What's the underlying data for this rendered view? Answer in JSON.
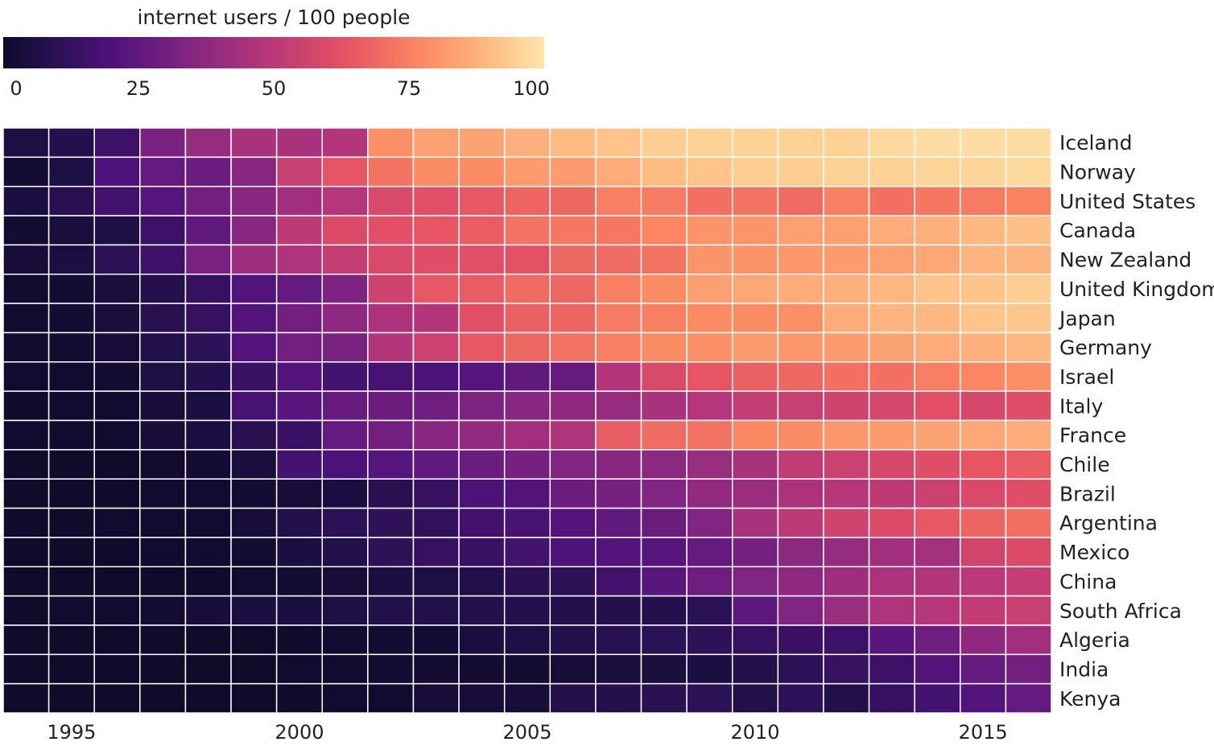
{
  "chart_data": {
    "type": "heatmap",
    "title": "",
    "legend": {
      "title": "internet users / 100 people",
      "range": [
        0,
        100
      ],
      "ticks": [
        "0",
        "25",
        "50",
        "75",
        "100"
      ],
      "colormap": "magma"
    },
    "x": [
      1994,
      1995,
      1996,
      1997,
      1998,
      1999,
      2000,
      2001,
      2002,
      2003,
      2004,
      2005,
      2006,
      2007,
      2008,
      2009,
      2010,
      2011,
      2012,
      2013,
      2014,
      2015,
      2016
    ],
    "x_ticks": [
      "1995",
      "2000",
      "2005",
      "2010",
      "2015"
    ],
    "x_tick_values": [
      1995,
      2000,
      2005,
      2010,
      2015
    ],
    "rows": [
      {
        "name": "Iceland",
        "values": [
          6,
          8,
          15,
          32,
          40,
          45,
          45,
          48,
          79,
          83,
          84,
          87,
          90,
          92,
          94,
          95,
          95,
          95,
          95,
          97,
          98,
          98,
          98
        ]
      },
      {
        "name": "Norway",
        "values": [
          2,
          6,
          20,
          26,
          28,
          36,
          54,
          64,
          72,
          78,
          78,
          82,
          82,
          86,
          90,
          92,
          94,
          94,
          95,
          95,
          96,
          96,
          97
        ]
      },
      {
        "name": "United States",
        "values": [
          5,
          9,
          16,
          22,
          30,
          36,
          43,
          49,
          59,
          62,
          65,
          68,
          69,
          75,
          74,
          71,
          72,
          70,
          75,
          71,
          73,
          74,
          76
        ]
      },
      {
        "name": "Canada",
        "values": [
          2,
          4,
          6,
          15,
          25,
          36,
          51,
          60,
          62,
          64,
          66,
          72,
          73,
          73,
          77,
          80,
          80,
          83,
          83,
          86,
          87,
          89,
          91
        ]
      },
      {
        "name": "New Zealand",
        "values": [
          3,
          5,
          10,
          15,
          32,
          42,
          47,
          53,
          59,
          61,
          62,
          63,
          69,
          70,
          72,
          80,
          80,
          81,
          82,
          83,
          85,
          88,
          88
        ]
      },
      {
        "name": "United Kingdom",
        "values": [
          1,
          2,
          4,
          8,
          13,
          21,
          26,
          33,
          56,
          65,
          66,
          70,
          69,
          75,
          78,
          83,
          85,
          86,
          87,
          89,
          92,
          92,
          94
        ]
      },
      {
        "name": "Japan",
        "values": [
          1,
          2,
          4,
          9,
          13,
          21,
          30,
          38,
          46,
          48,
          62,
          67,
          68,
          74,
          75,
          78,
          78,
          79,
          86,
          88,
          89,
          92,
          93
        ]
      },
      {
        "name": "Germany",
        "values": [
          1,
          2,
          3,
          7,
          10,
          21,
          30,
          32,
          48,
          55,
          65,
          69,
          72,
          75,
          78,
          79,
          82,
          81,
          82,
          84,
          86,
          87,
          89
        ]
      },
      {
        "name": "Israel",
        "values": [
          1,
          1,
          2,
          6,
          8,
          14,
          21,
          17,
          18,
          19,
          22,
          25,
          26,
          48,
          59,
          64,
          67,
          69,
          71,
          71,
          75,
          77,
          79
        ]
      },
      {
        "name": "Italy",
        "values": [
          0,
          1,
          1,
          3,
          5,
          18,
          23,
          27,
          28,
          29,
          33,
          36,
          38,
          40,
          45,
          49,
          53,
          54,
          56,
          58,
          62,
          58,
          61
        ]
      },
      {
        "name": "France",
        "values": [
          1,
          1,
          1,
          3,
          5,
          9,
          14,
          26,
          30,
          36,
          39,
          43,
          47,
          66,
          70,
          72,
          77,
          78,
          81,
          82,
          84,
          85,
          86
        ]
      },
      {
        "name": "Chile",
        "values": [
          0,
          0,
          0,
          1,
          2,
          4,
          17,
          19,
          22,
          25,
          28,
          31,
          34,
          36,
          37,
          41,
          45,
          52,
          55,
          58,
          61,
          64,
          66
        ]
      },
      {
        "name": "Brazil",
        "values": [
          0,
          0,
          0,
          1,
          1,
          2,
          3,
          5,
          9,
          13,
          19,
          21,
          28,
          31,
          34,
          39,
          41,
          46,
          49,
          51,
          55,
          59,
          61
        ]
      },
      {
        "name": "Argentina",
        "values": [
          0,
          0,
          1,
          1,
          1,
          3,
          7,
          10,
          11,
          12,
          16,
          18,
          21,
          25,
          28,
          34,
          45,
          51,
          56,
          60,
          65,
          68,
          71
        ]
      },
      {
        "name": "Mexico",
        "values": [
          0,
          0,
          0,
          1,
          1,
          2,
          5,
          7,
          11,
          13,
          14,
          17,
          20,
          21,
          22,
          26,
          31,
          37,
          40,
          43,
          44,
          57,
          60
        ]
      },
      {
        "name": "China",
        "values": [
          0,
          0,
          0,
          0,
          0,
          1,
          2,
          3,
          5,
          6,
          7,
          9,
          11,
          16,
          23,
          29,
          34,
          38,
          42,
          46,
          48,
          50,
          53
        ]
      },
      {
        "name": "South Africa",
        "values": [
          0,
          1,
          1,
          2,
          3,
          5,
          5,
          6,
          7,
          7,
          8,
          8,
          8,
          8,
          8,
          10,
          24,
          34,
          41,
          47,
          49,
          52,
          54
        ]
      },
      {
        "name": "Algeria",
        "values": [
          0,
          0,
          0,
          0,
          0,
          0,
          0,
          1,
          2,
          2,
          5,
          6,
          7,
          9,
          10,
          11,
          13,
          14,
          15,
          23,
          29,
          38,
          43
        ]
      },
      {
        "name": "India",
        "values": [
          0,
          0,
          0,
          0,
          0,
          0,
          1,
          1,
          2,
          2,
          2,
          2,
          3,
          4,
          4,
          5,
          8,
          10,
          13,
          15,
          21,
          26,
          30
        ]
      },
      {
        "name": "Kenya",
        "values": [
          0,
          0,
          0,
          0,
          0,
          0,
          0,
          1,
          1,
          3,
          3,
          3,
          8,
          8,
          9,
          10,
          7,
          10,
          7,
          13,
          17,
          21,
          26
        ]
      }
    ]
  }
}
